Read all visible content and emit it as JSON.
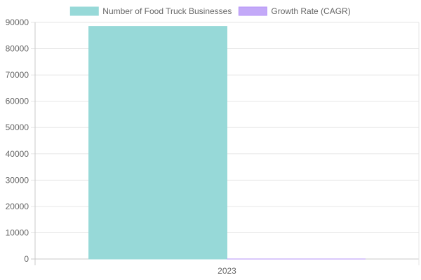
{
  "chart_data": {
    "type": "bar",
    "categories": [
      "2023"
    ],
    "series": [
      {
        "name": "Number of Food Truck Businesses",
        "values": [
          88500
        ],
        "color": "#97d9d8",
        "border": "#97d9d8"
      },
      {
        "name": "Growth Rate (CAGR)",
        "values": [
          6.8
        ],
        "color": "#c3a9f8",
        "border": "#b795f7"
      }
    ],
    "ylim": [
      0,
      90000
    ],
    "yticks": [
      0,
      10000,
      20000,
      30000,
      40000,
      50000,
      60000,
      70000,
      80000,
      90000
    ],
    "grid": true,
    "legend": "top"
  }
}
